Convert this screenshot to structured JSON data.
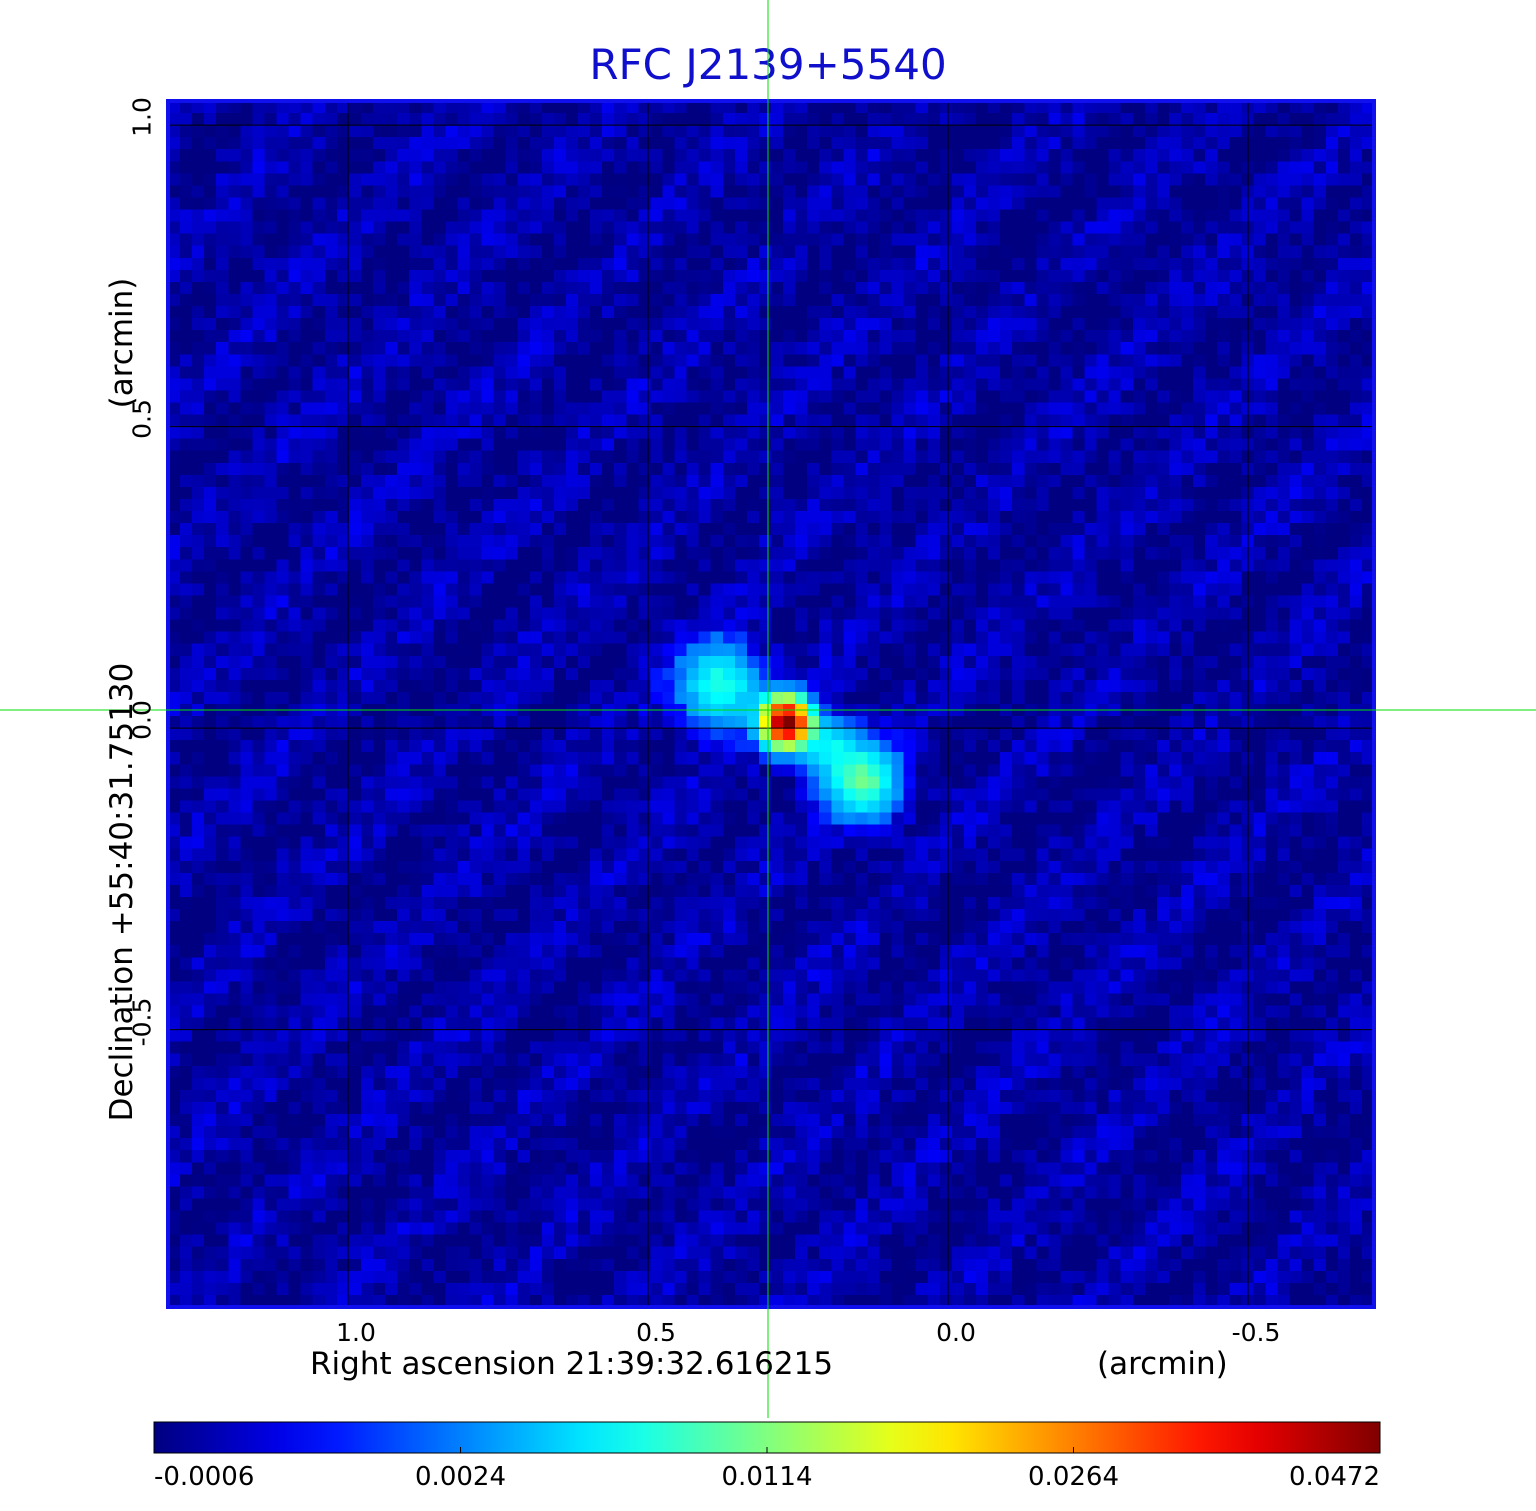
{
  "chart_data": {
    "type": "heatmap",
    "title": "RFC J2139+5540",
    "xlabel": "Right ascension  21:39:32.616215",
    "xlabel_unit": "(arcmin)",
    "ylabel": "Declination  +55:40:31.75130",
    "ylabel_unit": "(arcmin)",
    "x_ticks": [
      "1.0",
      "0.5",
      "0.0",
      "-0.5"
    ],
    "x_tick_values": [
      1.0,
      0.5,
      0.0,
      -0.5
    ],
    "y_ticks": [
      "1.0",
      "0.5",
      "0.0",
      "-0.5"
    ],
    "y_tick_values": [
      1.0,
      0.5,
      0.0,
      -0.5
    ],
    "xlim": [
      1.3,
      -0.71
    ],
    "ylim": [
      -0.96,
      1.04
    ],
    "grid": true,
    "crosshair": {
      "x": 0.3,
      "y": 0.03,
      "color": "#00dd00"
    },
    "sources": [
      {
        "x": 0.27,
        "y": 0.01,
        "peak": 0.0472,
        "sigma": 0.025
      },
      {
        "x": 0.38,
        "y": 0.07,
        "peak": 0.0085,
        "sigma": 0.045
      },
      {
        "x": 0.14,
        "y": -0.09,
        "peak": 0.01,
        "sigma": 0.04
      },
      {
        "x": 0.2,
        "y": -0.03,
        "peak": 0.006,
        "sigma": 0.035
      }
    ],
    "background": -0.0002,
    "colorbar": {
      "ticks": [
        "-0.0006",
        "0.0024",
        "0.0114",
        "0.0264",
        "0.0472"
      ],
      "tick_values": [
        -0.0006,
        0.0024,
        0.0114,
        0.0264,
        0.0472
      ],
      "colormap": "jet"
    }
  }
}
